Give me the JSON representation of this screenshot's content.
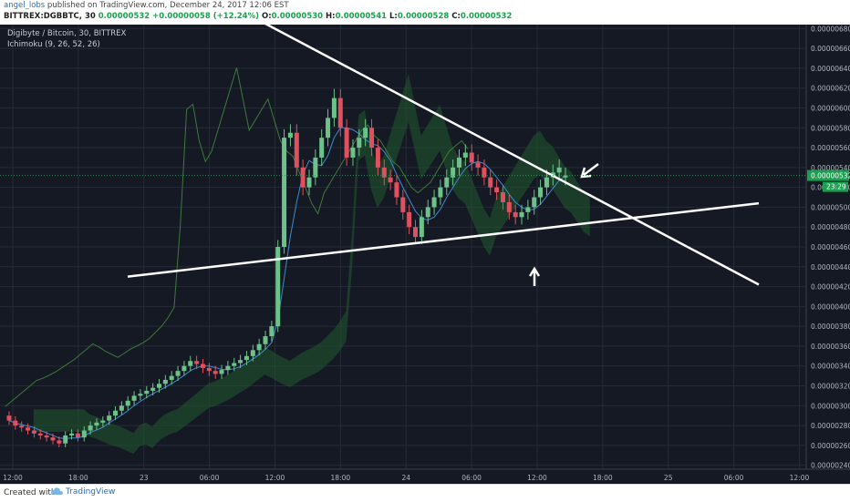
{
  "header": {
    "user": "angel_lobs",
    "published": " published on TradingView.com, December 24, 2017 12:06 EST",
    "symbol": "BITTREX:DGBBTC, 30",
    "change": "0.00000532  +0.00000058 (+12.24%)",
    "o_label": "O:",
    "o_value": "0.00000530",
    "h_label": "H:",
    "h_value": "0.00000541",
    "l_label": "L:",
    "l_value": "0.00000528",
    "c_label": "C:",
    "c_value": "0.00000532"
  },
  "legend": {
    "title": "Digibyte / Bitcoin, 30, BITTREX",
    "indicator": "Ichimoku (9, 26, 52, 26)"
  },
  "footer": {
    "created": "Created with",
    "brand": "TradingView"
  },
  "colors": {
    "background": "#151924",
    "up": "#6dc28a",
    "down": "#e0515f",
    "grid": "#262b38",
    "trendline": "#ffffff",
    "cloud_bull": "#1f5a2c",
    "cloud_bear": "#5a1f2a",
    "price_label": "#1c9f4f"
  },
  "chart_data": {
    "type": "candlestick",
    "title": "Digibyte / Bitcoin, 30, BITTREX",
    "ylim": [
      2.36e-06,
      6.84e-06
    ],
    "y_ticks": [
      "0.00000680",
      "0.00000660",
      "0.00000640",
      "0.00000620",
      "0.00000600",
      "0.00000580",
      "0.00000560",
      "0.00000540",
      "0.00000520",
      "0.00000500",
      "0.00000480",
      "0.00000460",
      "0.00000440",
      "0.00000420",
      "0.00000400",
      "0.00000380",
      "0.00000360",
      "0.00000340",
      "0.00000320",
      "0.00000300",
      "0.00000280",
      "0.00000260",
      "0.00000240"
    ],
    "x_ticks": [
      "12:00",
      "18:00",
      "23",
      "06:00",
      "12:00",
      "18:00",
      "24",
      "06:00",
      "12:00",
      "18:00",
      "25",
      "06:00",
      "12:00"
    ],
    "last_price_label": "0.00000532",
    "countdown_label": "23:29",
    "candles_close": [
      285,
      280,
      278,
      275,
      272,
      270,
      268,
      265,
      262,
      270,
      272,
      268,
      275,
      280,
      283,
      285,
      290,
      295,
      300,
      305,
      310,
      312,
      315,
      318,
      322,
      326,
      330,
      335,
      340,
      345,
      342,
      338,
      335,
      332,
      336,
      340,
      343,
      346,
      350,
      356,
      362,
      370,
      380,
      460,
      570,
      575,
      540,
      520,
      530,
      550,
      570,
      590,
      610,
      580,
      550,
      560,
      570,
      580,
      560,
      540,
      530,
      525,
      510,
      495,
      480,
      470,
      490,
      500,
      510,
      520,
      530,
      540,
      550,
      555,
      545,
      540,
      530,
      520,
      515,
      505,
      495,
      490,
      495,
      500,
      510,
      520,
      530,
      535,
      540,
      532
    ],
    "candles_open": [
      290,
      285,
      280,
      278,
      275,
      272,
      270,
      268,
      265,
      262,
      270,
      272,
      268,
      275,
      280,
      283,
      285,
      290,
      295,
      300,
      305,
      310,
      312,
      315,
      318,
      322,
      326,
      330,
      335,
      340,
      345,
      342,
      338,
      335,
      332,
      336,
      340,
      343,
      346,
      350,
      356,
      362,
      370,
      380,
      460,
      570,
      575,
      540,
      520,
      530,
      550,
      570,
      590,
      610,
      580,
      550,
      560,
      570,
      580,
      560,
      540,
      530,
      525,
      510,
      495,
      480,
      470,
      490,
      500,
      510,
      520,
      530,
      540,
      550,
      555,
      545,
      540,
      530,
      520,
      515,
      505,
      495,
      490,
      495,
      500,
      510,
      520,
      530,
      535,
      530
    ],
    "trendlines": [
      {
        "from": [
          "22 12:00",
          7e-06
        ],
        "to": [
          "25 18:00",
          4.22e-06
        ]
      },
      {
        "from": [
          "22 21:00",
          4.3e-06
        ],
        "to": [
          "25 18:00",
          5.04e-06
        ]
      }
    ]
  }
}
